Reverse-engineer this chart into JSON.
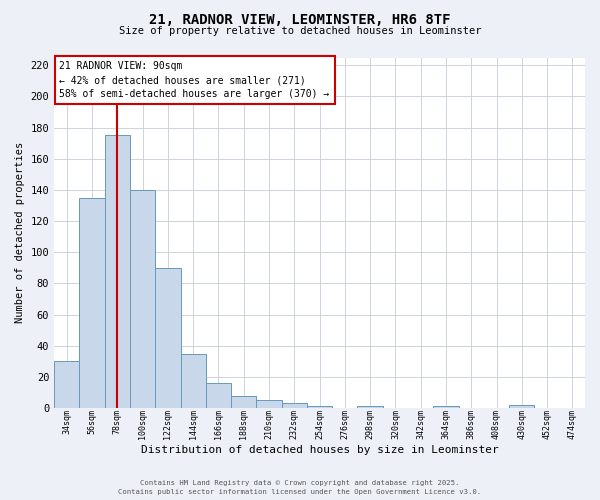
{
  "title": "21, RADNOR VIEW, LEOMINSTER, HR6 8TF",
  "subtitle": "Size of property relative to detached houses in Leominster",
  "xlabel": "Distribution of detached houses by size in Leominster",
  "ylabel": "Number of detached properties",
  "bar_values": [
    30,
    135,
    175,
    140,
    90,
    35,
    16,
    8,
    5,
    3,
    1,
    0,
    1,
    0,
    0,
    1,
    0,
    0,
    2,
    0,
    0
  ],
  "bin_labels": [
    "34sqm",
    "56sqm",
    "78sqm",
    "100sqm",
    "122sqm",
    "144sqm",
    "166sqm",
    "188sqm",
    "210sqm",
    "232sqm",
    "254sqm",
    "276sqm",
    "298sqm",
    "320sqm",
    "342sqm",
    "364sqm",
    "386sqm",
    "408sqm",
    "430sqm",
    "452sqm",
    "474sqm"
  ],
  "bar_color": "#c8d8ea",
  "bar_edge_color": "#6699bb",
  "vline_color": "#cc0000",
  "vline_x_index": 2,
  "ylim": [
    0,
    225
  ],
  "yticks": [
    0,
    20,
    40,
    60,
    80,
    100,
    120,
    140,
    160,
    180,
    200,
    220
  ],
  "annotation_title": "21 RADNOR VIEW: 90sqm",
  "annotation_line1": "← 42% of detached houses are smaller (271)",
  "annotation_line2": "58% of semi-detached houses are larger (370) →",
  "annotation_box_color": "#ffffff",
  "annotation_box_edge": "#cc0000",
  "footer_line1": "Contains HM Land Registry data © Crown copyright and database right 2025.",
  "footer_line2": "Contains public sector information licensed under the Open Government Licence v3.0.",
  "bg_color": "#edf1f7",
  "plot_bg_color": "#ffffff",
  "grid_color": "#c5cdd8"
}
